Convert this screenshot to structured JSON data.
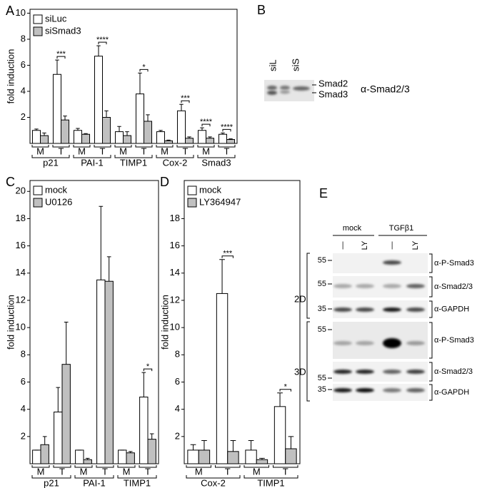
{
  "chart_data": [
    {
      "type": "bar",
      "label": "A",
      "ylabel": "fold induction",
      "ylim": [
        0,
        10.3
      ],
      "yticks": [
        2,
        4,
        6,
        8,
        10
      ],
      "categories": [
        "M",
        "T",
        "M",
        "T",
        "M",
        "T",
        "M",
        "T",
        "M",
        "T"
      ],
      "groups": [
        "p21",
        "PAI-1",
        "TIMP1",
        "Cox-2",
        "Smad3"
      ],
      "significance": [
        null,
        "***",
        null,
        "****",
        null,
        "*",
        null,
        "***",
        "****",
        "****"
      ],
      "series": [
        {
          "name": "siLuc",
          "color": "#ffffff",
          "values": [
            1.0,
            5.3,
            1.0,
            6.7,
            0.9,
            3.8,
            0.9,
            2.5,
            1.0,
            0.7
          ],
          "errors": [
            0.1,
            1.1,
            0.15,
            0.8,
            0.4,
            1.6,
            0.1,
            0.5,
            0.2,
            0.1
          ]
        },
        {
          "name": "siSmad3",
          "color": "#c0c0c0",
          "values": [
            0.6,
            1.8,
            0.7,
            2.0,
            0.6,
            1.7,
            0.2,
            0.4,
            0.4,
            0.3
          ],
          "errors": [
            0.2,
            0.3,
            0.05,
            0.5,
            0.3,
            0.5,
            0.05,
            0.1,
            0.1,
            0.05
          ]
        }
      ]
    },
    {
      "type": "bar",
      "label": "C",
      "ylabel": "fold induction",
      "ylim": [
        0,
        20.8
      ],
      "yticks": [
        2,
        4,
        6,
        8,
        10,
        12,
        14,
        16,
        18,
        20
      ],
      "categories": [
        "M",
        "T",
        "M",
        "T",
        "M",
        "T"
      ],
      "groups": [
        "p21",
        "PAI-1",
        "TIMP1"
      ],
      "significance": [
        null,
        null,
        null,
        null,
        null,
        "*"
      ],
      "series": [
        {
          "name": "mock",
          "color": "#ffffff",
          "values": [
            1.0,
            3.8,
            1.0,
            13.5,
            1.0,
            4.9
          ],
          "errors": [
            0,
            1.8,
            0,
            5.4,
            0,
            1.8
          ]
        },
        {
          "name": "U0126",
          "color": "#c0c0c0",
          "values": [
            1.4,
            7.3,
            0.3,
            13.4,
            0.8,
            1.8
          ],
          "errors": [
            0.6,
            3.1,
            0.1,
            1.8,
            0.1,
            0.4
          ]
        }
      ]
    },
    {
      "type": "bar",
      "label": "D",
      "ylabel": "fold induction",
      "ylim": [
        0,
        20.8
      ],
      "yticks": [
        2,
        4,
        6,
        8,
        10,
        12,
        14,
        16,
        18
      ],
      "categories": [
        "M",
        "T",
        "M",
        "T"
      ],
      "groups": [
        "Cox-2",
        "TIMP1"
      ],
      "significance": [
        null,
        "***",
        null,
        "*"
      ],
      "series": [
        {
          "name": "mock",
          "color": "#ffffff",
          "values": [
            1.0,
            12.5,
            1.0,
            4.2
          ],
          "errors": [
            0.4,
            2.5,
            0.7,
            1.0
          ]
        },
        {
          "name": "LY364947",
          "color": "#c0c0c0",
          "values": [
            1.0,
            0.9,
            0.3,
            1.1
          ],
          "errors": [
            0.7,
            0.8,
            0.1,
            0.9
          ]
        }
      ]
    }
  ],
  "blot_b": {
    "label": "B",
    "lanes": [
      "siL",
      "siS"
    ],
    "bands": [
      "Smad2",
      "Smad3"
    ],
    "antibody": "α-Smad2/3"
  },
  "blot_e": {
    "label": "E",
    "treatments": [
      "mock",
      "TGFβ1"
    ],
    "lanes": [
      "—",
      "LY",
      "—",
      "LY"
    ],
    "conditions": [
      "2D",
      "3D"
    ],
    "rows": [
      {
        "marker": 55,
        "antibody": "α-P-Smad3"
      },
      {
        "marker": 55,
        "antibody": "α-Smad2/3"
      },
      {
        "marker": 35,
        "antibody": "α-GAPDH"
      },
      {
        "marker": 55,
        "antibody": "α-P-Smad3"
      },
      {
        "marker": 55,
        "antibody": "α-Smad2/3"
      },
      {
        "marker": 35,
        "antibody": "α-GAPDH"
      }
    ]
  }
}
